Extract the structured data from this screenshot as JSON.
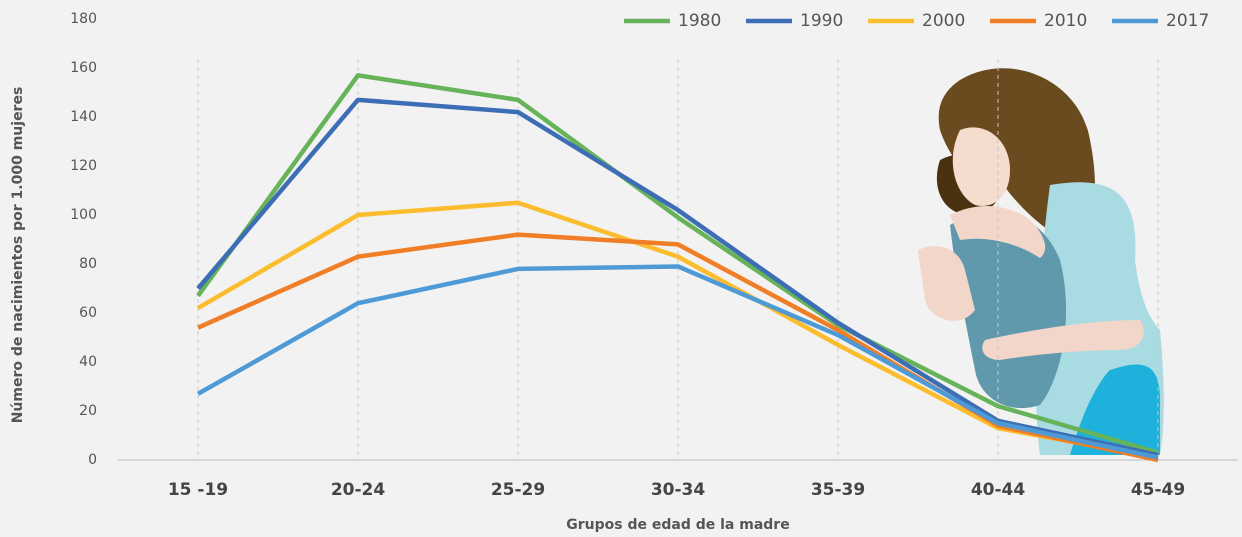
{
  "chart_data": {
    "type": "line",
    "y_label": "Número de nacimientos por 1.000 mujeres",
    "x_label": "Grupos de edad de la madre",
    "categories": [
      "15 -19",
      "20-24",
      "25-29",
      "30-34",
      "35-39",
      "40-44",
      "45-49"
    ],
    "series": [
      {
        "name": "1980",
        "color": "#67b35a",
        "values": [
          67,
          157,
          147,
          99,
          55,
          22,
          3
        ]
      },
      {
        "name": "1990",
        "color": "#3d6db5",
        "values": [
          70,
          147,
          142,
          102,
          56,
          16,
          2
        ]
      },
      {
        "name": "2000",
        "color": "#fbbd2e",
        "values": [
          62,
          100,
          105,
          83,
          47,
          13,
          1
        ]
      },
      {
        "name": "2010",
        "color": "#f07e26",
        "values": [
          54,
          83,
          92,
          88,
          53,
          14,
          0
        ]
      },
      {
        "name": "2017",
        "color": "#4d9ad6",
        "values": [
          27,
          64,
          78,
          79,
          51,
          15,
          1
        ]
      }
    ],
    "ylim": [
      0,
      180
    ],
    "yticks": [
      0,
      20,
      40,
      60,
      80,
      100,
      120,
      140,
      160,
      180
    ],
    "legend": "top-right",
    "vertical_grid": true
  }
}
